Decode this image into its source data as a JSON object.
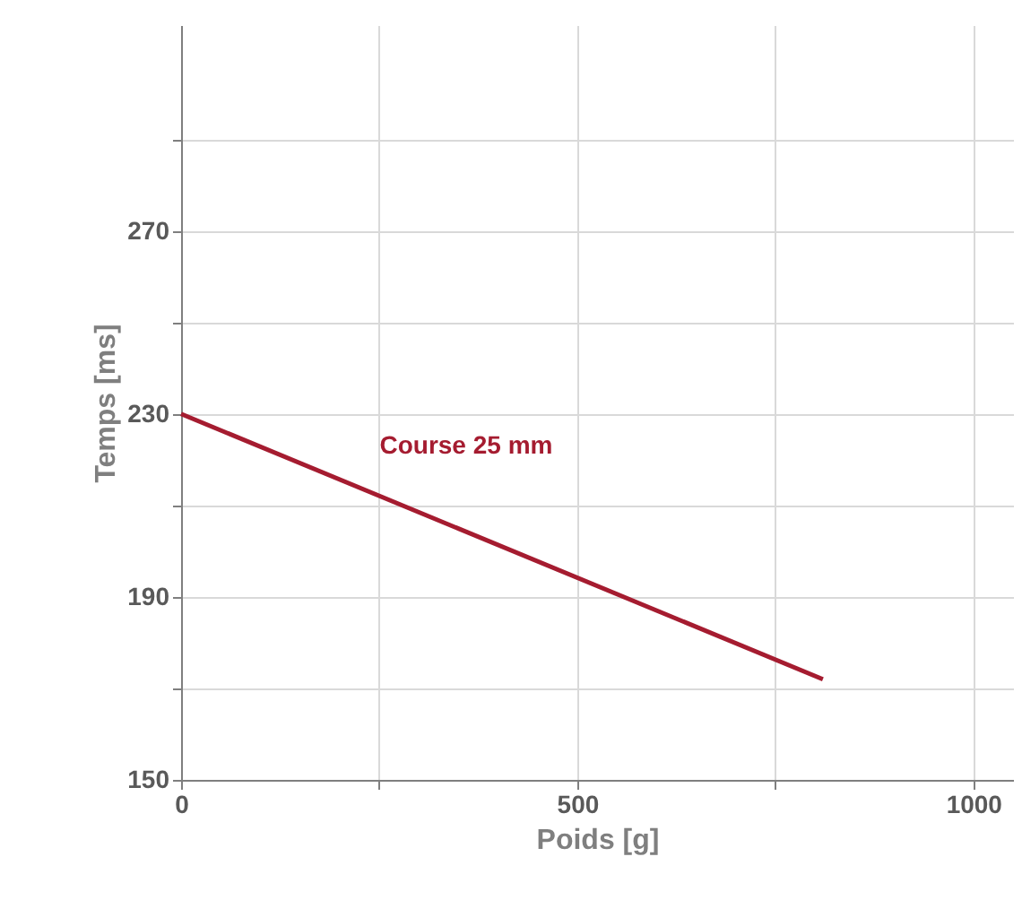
{
  "chart_data": {
    "type": "line",
    "xlabel": "Poids [g]",
    "ylabel": "Temps [ms]",
    "x": [
      0,
      810
    ],
    "series": [
      {
        "name": "Course 25 mm",
        "color": "#a51c30",
        "values": [
          230,
          172
        ]
      }
    ],
    "xlim": [
      0,
      1050
    ],
    "ylim": [
      150,
      315
    ],
    "xticks": [
      0,
      {
        "value": 250,
        "label": null
      },
      500,
      {
        "value": 750,
        "label": null
      },
      1000
    ],
    "yticks": [
      150,
      {
        "value": 170,
        "label": null
      },
      190,
      {
        "value": 210,
        "label": null
      },
      230,
      {
        "value": 250,
        "label": null
      },
      270,
      {
        "value": 290,
        "label": null
      }
    ],
    "grid": true,
    "marker": "none",
    "line_style": "solid"
  }
}
